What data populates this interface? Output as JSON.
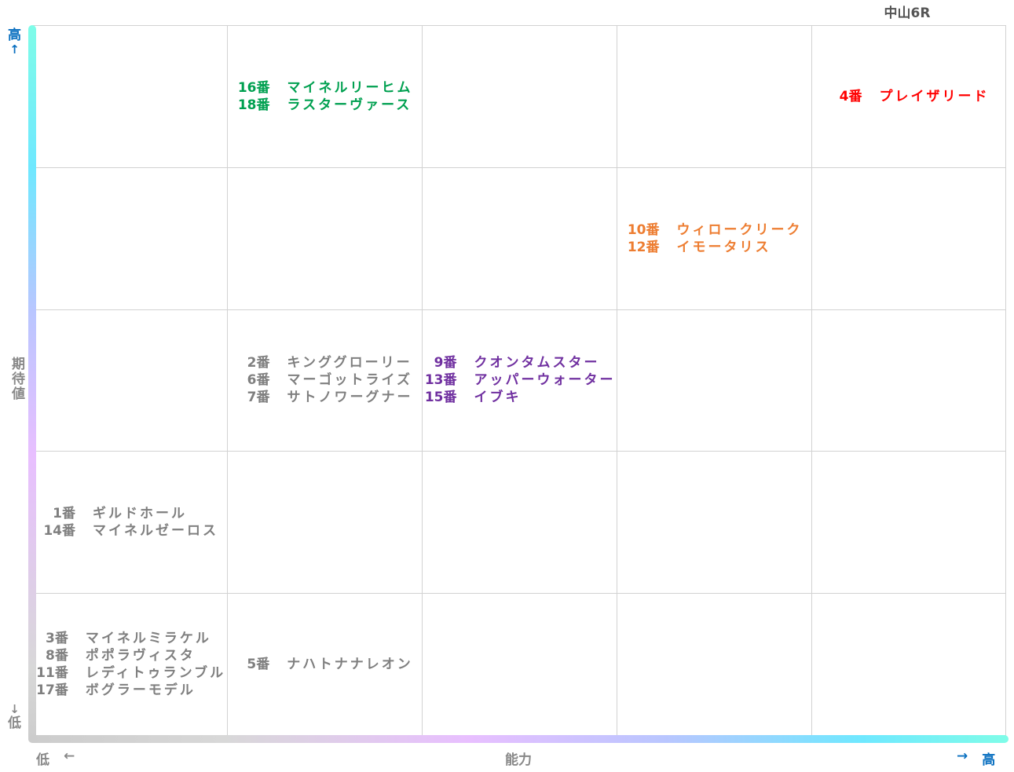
{
  "chart_data": {
    "type": "table",
    "title": "中山6R",
    "xlabel": "能力",
    "ylabel": "期待値",
    "x_low": "低",
    "x_high": "高",
    "y_low": "低",
    "y_high": "高",
    "arrow_right": "→",
    "arrow_left": "←",
    "arrow_up": "↑",
    "arrow_down": "↓",
    "grid": {
      "rows": [
        [
          [],
          [
            {
              "num": "16番",
              "name": "マイネルリーヒム",
              "color": "green"
            },
            {
              "num": "18番",
              "name": "ラスターヴァース",
              "color": "green"
            }
          ],
          [],
          [],
          [
            {
              "num": "4番",
              "name": "プレイザリード",
              "color": "red"
            }
          ]
        ],
        [
          [],
          [],
          [],
          [
            {
              "num": "10番",
              "name": "ウィロークリーク",
              "color": "orange"
            },
            {
              "num": "12番",
              "name": "イモータリス",
              "color": "orange"
            }
          ],
          []
        ],
        [
          [],
          [
            {
              "num": "2番",
              "name": "キンググローリー",
              "color": "gray"
            },
            {
              "num": "6番",
              "name": "マーゴットライズ",
              "color": "gray"
            },
            {
              "num": "7番",
              "name": "サトノワーグナー",
              "color": "gray"
            }
          ],
          [
            {
              "num": "9番",
              "name": "クオンタムスター",
              "color": "purple"
            },
            {
              "num": "13番",
              "name": "アッパーウォーター",
              "color": "purple"
            },
            {
              "num": "15番",
              "name": "イブキ",
              "color": "purple"
            }
          ],
          [],
          []
        ],
        [
          [
            {
              "num": "1番",
              "name": "ギルドホール",
              "color": "gray"
            },
            {
              "num": "14番",
              "name": "マイネルゼーロス",
              "color": "gray"
            }
          ],
          [],
          [],
          [],
          []
        ],
        [
          [
            {
              "num": "3番",
              "name": "マイネルミラケル",
              "color": "gray"
            },
            {
              "num": "8番",
              "name": "ポポラヴィスタ",
              "color": "gray"
            },
            {
              "num": "11番",
              "name": "レディトゥランブル",
              "color": "gray"
            },
            {
              "num": "17番",
              "name": "ボグラーモデル",
              "color": "gray"
            }
          ],
          [
            {
              "num": "5番",
              "name": "ナハトナナレオン",
              "color": "gray"
            }
          ],
          [],
          [],
          []
        ]
      ]
    },
    "colors": {
      "gray": "#7f7f7f",
      "green": "#00a050",
      "orange": "#ed7d31",
      "purple": "#7030a0",
      "red": "#ff0000",
      "axis_blue": "#0a70c0"
    }
  }
}
